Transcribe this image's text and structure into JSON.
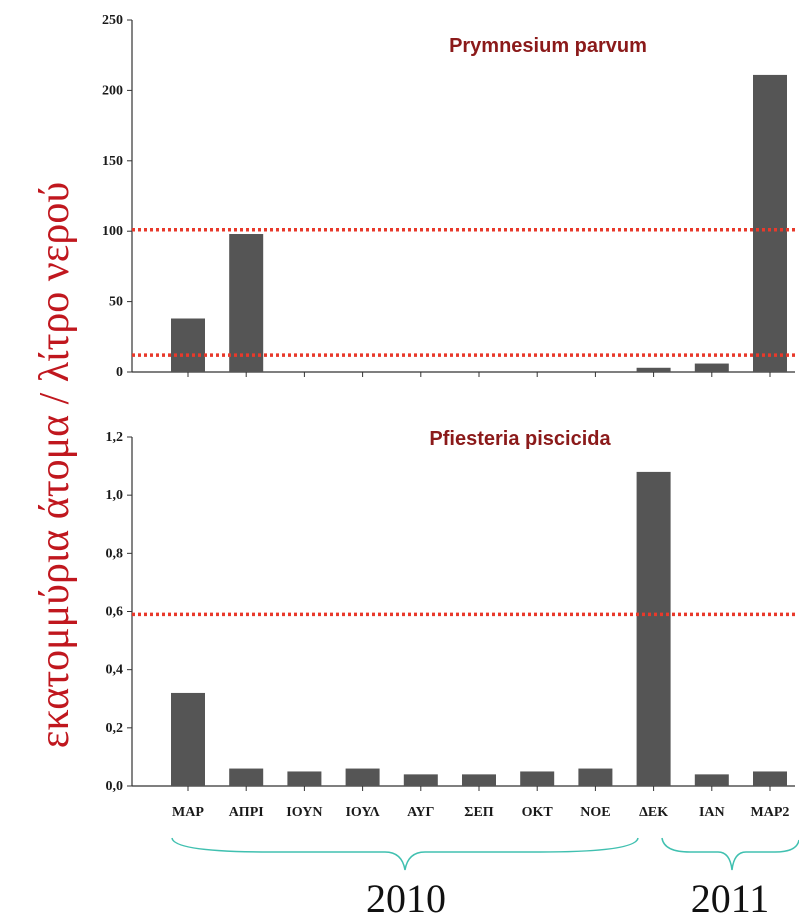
{
  "figure": {
    "ylabel": "εκατομμύρια άτομα / λίτρο νερού",
    "year_labels": [
      "2010",
      "2011"
    ],
    "colors": {
      "bar": "#555555",
      "threshold": "#e8392b",
      "brace": "#40c0b0",
      "ylabel": "#c0171e",
      "title": "#8b1a1a"
    }
  },
  "chart_data": [
    {
      "type": "bar",
      "title": "Prymnesium parvum",
      "categories": [
        "ΜΑΡ",
        "ΑΠΡΙ",
        "ΙΟΥΝ",
        "ΙΟΥΛ",
        "ΑΥΓ",
        "ΣΕΠ",
        "ΟΚΤ",
        "ΝΟΕ",
        "ΔΕΚ",
        "ΙΑΝ",
        "ΜΑΡ2"
      ],
      "values": [
        38,
        98,
        0,
        0,
        0,
        0,
        0,
        0,
        3,
        6,
        211
      ],
      "ylim": [
        0,
        250
      ],
      "yticks": [
        0,
        50,
        100,
        150,
        200,
        250
      ],
      "ytick_labels": [
        "0",
        "50",
        "100",
        "150",
        "200",
        "250"
      ],
      "threshold_lines": [
        101,
        12
      ],
      "show_category_labels": false
    },
    {
      "type": "bar",
      "title": "Pfiesteria piscicida",
      "categories": [
        "ΜΑΡ",
        "ΑΠΡΙ",
        "ΙΟΥΝ",
        "ΙΟΥΛ",
        "ΑΥΓ",
        "ΣΕΠ",
        "ΟΚΤ",
        "ΝΟΕ",
        "ΔΕΚ",
        "ΙΑΝ",
        "ΜΑΡ2"
      ],
      "values": [
        0.32,
        0.06,
        0.05,
        0.06,
        0.04,
        0.04,
        0.05,
        0.06,
        1.08,
        0.04,
        0.05
      ],
      "ylim": [
        0,
        1.2
      ],
      "yticks": [
        0,
        0.2,
        0.4,
        0.6,
        0.8,
        1.0,
        1.2
      ],
      "ytick_labels": [
        "0,0",
        "0,2",
        "0,4",
        "0,6",
        "0,8",
        "1,0",
        "1,2"
      ],
      "threshold_lines": [
        0.59
      ],
      "show_category_labels": true
    }
  ]
}
